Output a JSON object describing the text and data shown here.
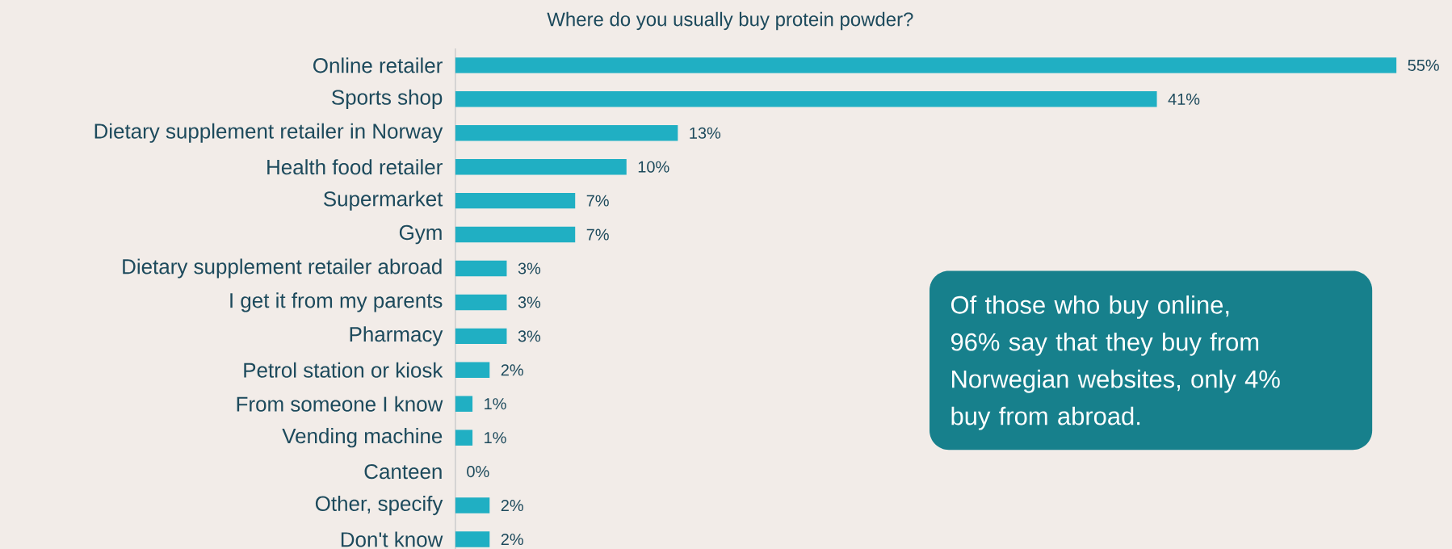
{
  "chart_data": {
    "type": "bar",
    "orientation": "horizontal",
    "title": "Where do you usually buy protein powder?",
    "categories": [
      "Online retailer",
      "Sports shop",
      "Dietary supplement retailer in Norway",
      "Health food retailer",
      "Supermarket",
      "Gym",
      "Dietary supplement retailer abroad",
      "I get it from my parents",
      "Pharmacy",
      "Petrol station or kiosk",
      "From someone I know",
      "Vending machine",
      "Canteen",
      "Other, specify",
      "Don't know"
    ],
    "values": [
      55,
      41,
      13,
      10,
      7,
      7,
      3,
      3,
      3,
      2,
      1,
      1,
      0,
      2,
      2
    ],
    "value_labels": [
      "55%",
      "41%",
      "13%",
      "10%",
      "7%",
      "7%",
      "3%",
      "3%",
      "3%",
      "2%",
      "1%",
      "1%",
      "0%",
      "2%",
      "2%"
    ],
    "color": "#20afc3",
    "annotations": [
      "Of those who buy online, 96% say that they buy from Norwegian websites, only 4% buy from abroad."
    ]
  }
}
